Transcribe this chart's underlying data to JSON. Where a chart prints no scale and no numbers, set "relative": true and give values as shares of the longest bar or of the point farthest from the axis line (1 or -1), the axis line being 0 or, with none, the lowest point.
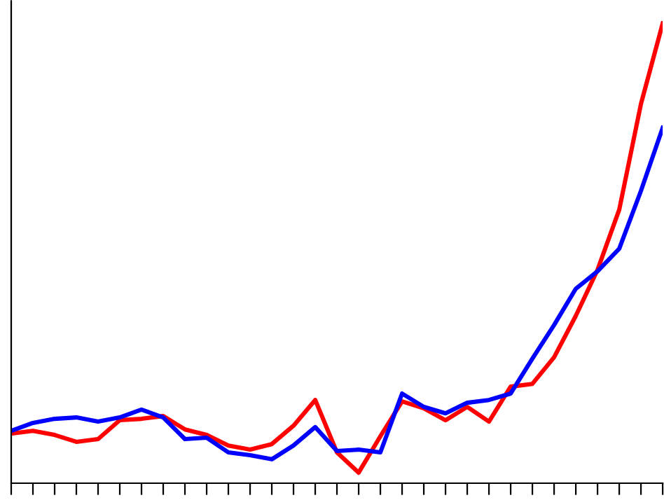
{
  "chart_data": {
    "type": "line",
    "relative": true,
    "grid": false,
    "legend": false,
    "marker": "none",
    "line_style": "solid",
    "categories": [
      null,
      null,
      null,
      null,
      null,
      null,
      null,
      null,
      null,
      null,
      null,
      null,
      null,
      null,
      null,
      null,
      null,
      null,
      null,
      null,
      null,
      null,
      null,
      null,
      null,
      null,
      null,
      null,
      null,
      null,
      null
    ],
    "series": [
      {
        "color": "#ff0000",
        "values": [
          0.108,
          0.114,
          0.105,
          0.09,
          0.096,
          0.137,
          0.14,
          0.146,
          0.117,
          0.105,
          0.082,
          0.073,
          0.085,
          0.125,
          0.181,
          0.067,
          0.023,
          0.102,
          0.178,
          0.163,
          0.137,
          0.166,
          0.134,
          0.21,
          0.216,
          0.274,
          0.364,
          0.464,
          0.595,
          0.825,
          1.0
        ]
      },
      {
        "color": "#0000ff",
        "values": [
          0.114,
          0.131,
          0.14,
          0.143,
          0.134,
          0.143,
          0.16,
          0.143,
          0.096,
          0.099,
          0.067,
          0.061,
          0.052,
          0.082,
          0.122,
          0.07,
          0.073,
          0.067,
          0.195,
          0.166,
          0.152,
          0.175,
          0.181,
          0.195,
          0.271,
          0.344,
          0.423,
          0.461,
          0.51,
          0.636,
          0.773
        ]
      }
    ]
  }
}
